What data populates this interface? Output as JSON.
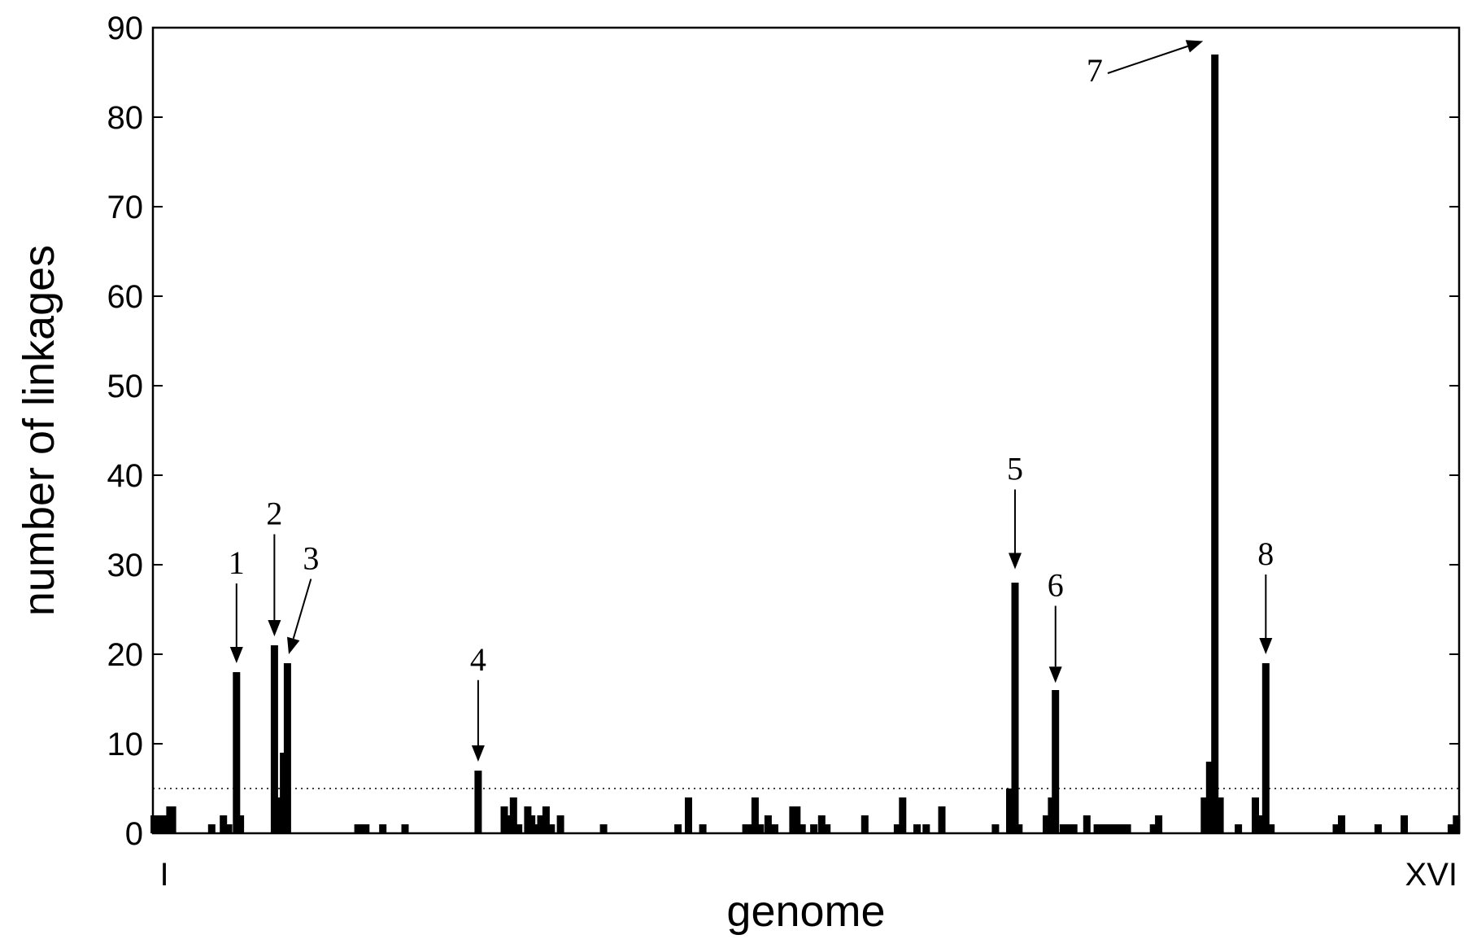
{
  "chart_data": {
    "type": "bar",
    "xlabel": "genome",
    "ylabel": "number of linkages",
    "x_start_label": "I",
    "x_end_label": "XVI",
    "ylim": [
      0,
      90
    ],
    "yticks": [
      0,
      10,
      20,
      30,
      40,
      50,
      60,
      70,
      80,
      90
    ],
    "threshold": {
      "value": 5,
      "style": "dotted"
    },
    "colors": {
      "bar": "#000000",
      "axis": "#000000"
    },
    "grid": false,
    "x_units": "genome position (0-1000)",
    "bars": [
      {
        "x": 1,
        "value": 2
      },
      {
        "x": 3,
        "value": 2
      },
      {
        "x": 7,
        "value": 2
      },
      {
        "x": 9,
        "value": 2
      },
      {
        "x": 13,
        "value": 3
      },
      {
        "x": 15,
        "value": 3
      },
      {
        "x": 45,
        "value": 1
      },
      {
        "x": 54,
        "value": 2
      },
      {
        "x": 58,
        "value": 1
      },
      {
        "x": 64,
        "value": 18
      },
      {
        "x": 67,
        "value": 2
      },
      {
        "x": 93,
        "value": 21
      },
      {
        "x": 97,
        "value": 4
      },
      {
        "x": 100,
        "value": 9
      },
      {
        "x": 103,
        "value": 19
      },
      {
        "x": 157,
        "value": 1
      },
      {
        "x": 160,
        "value": 1
      },
      {
        "x": 163,
        "value": 1
      },
      {
        "x": 176,
        "value": 1
      },
      {
        "x": 193,
        "value": 1
      },
      {
        "x": 249,
        "value": 7
      },
      {
        "x": 269,
        "value": 3
      },
      {
        "x": 273,
        "value": 2
      },
      {
        "x": 276,
        "value": 4
      },
      {
        "x": 280,
        "value": 1
      },
      {
        "x": 287,
        "value": 3
      },
      {
        "x": 290,
        "value": 2
      },
      {
        "x": 294,
        "value": 1
      },
      {
        "x": 297,
        "value": 2
      },
      {
        "x": 301,
        "value": 3
      },
      {
        "x": 305,
        "value": 1
      },
      {
        "x": 312,
        "value": 2
      },
      {
        "x": 345,
        "value": 1
      },
      {
        "x": 402,
        "value": 1
      },
      {
        "x": 410,
        "value": 4
      },
      {
        "x": 421,
        "value": 1
      },
      {
        "x": 454,
        "value": 1
      },
      {
        "x": 458,
        "value": 1
      },
      {
        "x": 461,
        "value": 4
      },
      {
        "x": 465,
        "value": 1
      },
      {
        "x": 471,
        "value": 2
      },
      {
        "x": 476,
        "value": 1
      },
      {
        "x": 490,
        "value": 3
      },
      {
        "x": 493,
        "value": 3
      },
      {
        "x": 497,
        "value": 1
      },
      {
        "x": 506,
        "value": 1
      },
      {
        "x": 512,
        "value": 2
      },
      {
        "x": 516,
        "value": 1
      },
      {
        "x": 545,
        "value": 2
      },
      {
        "x": 570,
        "value": 1
      },
      {
        "x": 574,
        "value": 4
      },
      {
        "x": 585,
        "value": 1
      },
      {
        "x": 592,
        "value": 1
      },
      {
        "x": 604,
        "value": 3
      },
      {
        "x": 645,
        "value": 1
      },
      {
        "x": 656,
        "value": 5
      },
      {
        "x": 660,
        "value": 28
      },
      {
        "x": 663,
        "value": 1
      },
      {
        "x": 684,
        "value": 2
      },
      {
        "x": 688,
        "value": 4
      },
      {
        "x": 691,
        "value": 16
      },
      {
        "x": 697,
        "value": 1
      },
      {
        "x": 701,
        "value": 1
      },
      {
        "x": 705,
        "value": 1
      },
      {
        "x": 715,
        "value": 2
      },
      {
        "x": 723,
        "value": 1
      },
      {
        "x": 727,
        "value": 1
      },
      {
        "x": 731,
        "value": 1
      },
      {
        "x": 735,
        "value": 1
      },
      {
        "x": 738,
        "value": 1
      },
      {
        "x": 742,
        "value": 1
      },
      {
        "x": 746,
        "value": 1
      },
      {
        "x": 766,
        "value": 1
      },
      {
        "x": 770,
        "value": 2
      },
      {
        "x": 805,
        "value": 4
      },
      {
        "x": 809,
        "value": 8
      },
      {
        "x": 813,
        "value": 87
      },
      {
        "x": 817,
        "value": 4
      },
      {
        "x": 831,
        "value": 1
      },
      {
        "x": 844,
        "value": 4
      },
      {
        "x": 848,
        "value": 2
      },
      {
        "x": 852,
        "value": 19
      },
      {
        "x": 856,
        "value": 1
      },
      {
        "x": 906,
        "value": 1
      },
      {
        "x": 910,
        "value": 2
      },
      {
        "x": 938,
        "value": 1
      },
      {
        "x": 958,
        "value": 2
      },
      {
        "x": 994,
        "value": 1
      },
      {
        "x": 998,
        "value": 2
      }
    ],
    "annotations": [
      {
        "label": "1",
        "target_x": 64,
        "target_y": 19,
        "label_x": 64,
        "label_y": 29
      },
      {
        "label": "2",
        "target_x": 93,
        "target_y": 22,
        "label_x": 93,
        "label_y": 34.5
      },
      {
        "label": "3",
        "target_x": 104,
        "target_y": 20,
        "label_x": 121,
        "label_y": 29.5
      },
      {
        "label": "4",
        "target_x": 249,
        "target_y": 8,
        "label_x": 249,
        "label_y": 18.2
      },
      {
        "label": "5",
        "target_x": 660,
        "target_y": 29.5,
        "label_x": 660,
        "label_y": 39.5
      },
      {
        "label": "6",
        "target_x": 691,
        "target_y": 16.8,
        "label_x": 691,
        "label_y": 26.5
      },
      {
        "label": "7",
        "target_x": 804,
        "target_y": 88.5,
        "label_x": 721,
        "label_y": 84
      },
      {
        "label": "8",
        "target_x": 852,
        "target_y": 20,
        "label_x": 852,
        "label_y": 30
      }
    ]
  }
}
